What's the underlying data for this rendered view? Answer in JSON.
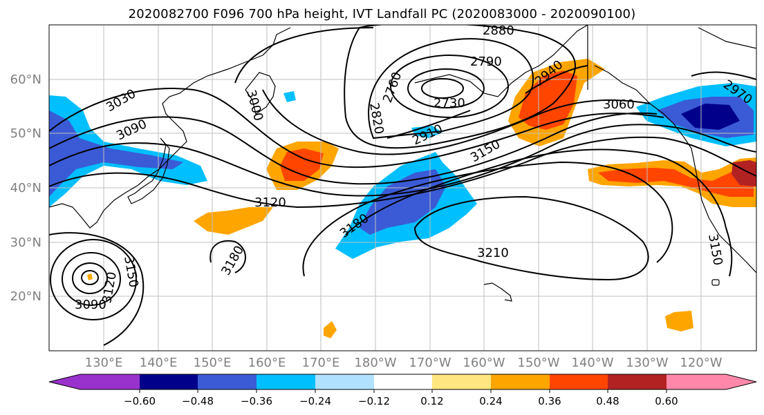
{
  "title": "2020082700 F096 700 hPa height, IVT Landfall PC (2020083000 - 2020090100)",
  "lat_ticks": [
    "60°N",
    "50°N",
    "40°N",
    "30°N",
    "20°N"
  ],
  "lon_ticks": [
    "130°E",
    "140°E",
    "150°E",
    "160°E",
    "170°E",
    "180°W",
    "170°W",
    "160°W",
    "150°W",
    "140°W",
    "130°W",
    "120°W"
  ],
  "contour_labels": [
    "2880",
    "2790",
    "2820",
    "2760",
    "2730",
    "2940",
    "3030",
    "3000",
    "3060",
    "3090",
    "2970",
    "3150",
    "2910",
    "3120",
    "3180",
    "3210",
    "3150",
    "3120",
    "3090",
    "3180",
    "3150"
  ],
  "colorbar": {
    "ticks": [
      "−0.60",
      "−0.48",
      "−0.36",
      "−0.24",
      "−0.12",
      "0.12",
      "0.24",
      "0.36",
      "0.48",
      "0.60"
    ],
    "colors": [
      "#9932cc",
      "#00008b",
      "#3b5bd6",
      "#00bfff",
      "#b0e2ff",
      "#ffffff",
      "#ffe680",
      "#ffa500",
      "#ff4500",
      "#b22222",
      "#ff88aa"
    ]
  }
}
